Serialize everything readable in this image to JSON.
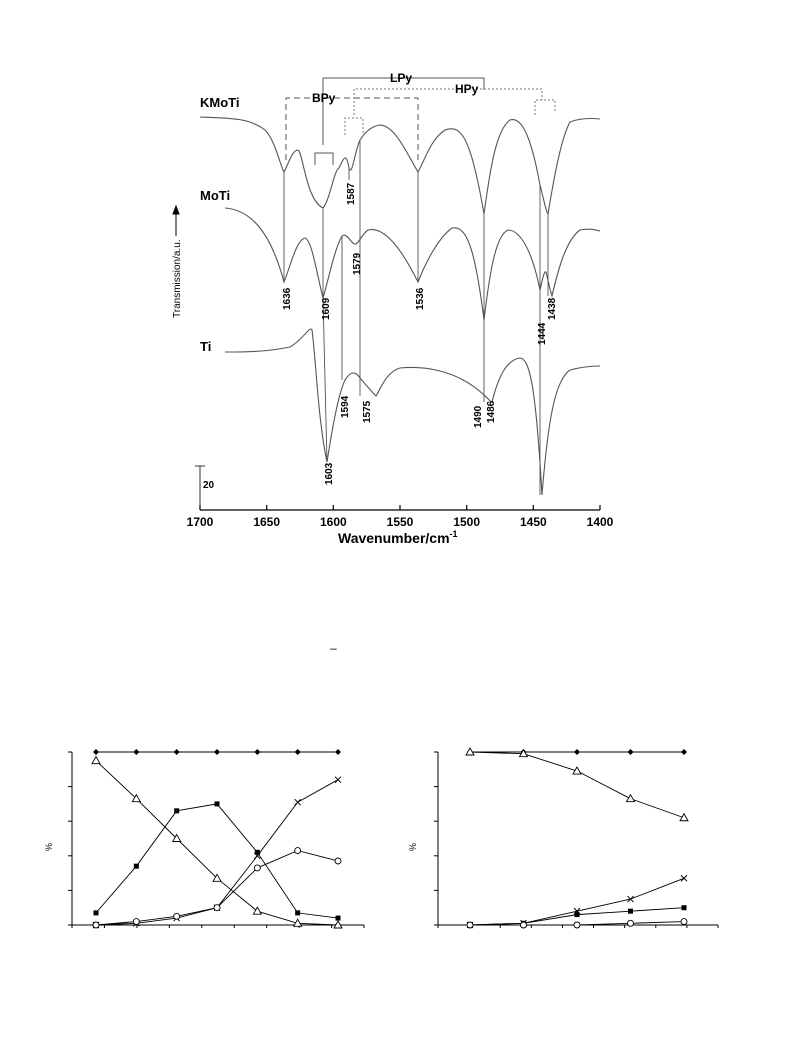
{
  "chart_data": [
    {
      "type": "line",
      "xlabel": "Wavenumber/cm",
      "xlabel_sup": "-1",
      "ylabel": "Transmission/a.u.",
      "xlim": [
        1700,
        1400
      ],
      "x_ticks": [
        "1700",
        "1650",
        "1600",
        "1550",
        "1500",
        "1450",
        "1400"
      ],
      "scale_bar_label": "20",
      "series": [
        {
          "name": "KMoTi",
          "bands": [
            1636,
            1609,
            1587,
            1536,
            1486,
            1438
          ]
        },
        {
          "name": "MoTi",
          "bands": [
            1636,
            1609,
            1579,
            1536,
            1486,
            1444,
            1438
          ]
        },
        {
          "name": "Ti",
          "bands": [
            1603,
            1594,
            1575,
            1490,
            1486,
            1444
          ]
        }
      ],
      "band_labels": [
        "1636",
        "1609",
        "1587",
        "1579",
        "1536",
        "1444",
        "1438",
        "1603",
        "1594",
        "1575",
        "1490",
        "1486"
      ],
      "bracket_labels": {
        "lpy": "LPy",
        "bpy": "BPy",
        "hpy": "HPy"
      }
    },
    {
      "type": "line",
      "ylabel": "%",
      "x": [
        1,
        2,
        3,
        4,
        5,
        6,
        7
      ],
      "ylim": [
        0,
        100
      ],
      "series": [
        {
          "marker": "diamond",
          "values": [
            100,
            100,
            100,
            100,
            100,
            100,
            100
          ]
        },
        {
          "marker": "triangle",
          "values": [
            95,
            73,
            50,
            27,
            8,
            1,
            0
          ]
        },
        {
          "marker": "square",
          "values": [
            7,
            34,
            66,
            70,
            42,
            7,
            4
          ]
        },
        {
          "marker": "cross",
          "values": [
            0,
            1,
            4,
            10,
            40,
            71,
            84
          ]
        },
        {
          "marker": "circle",
          "values": [
            0,
            2,
            5,
            10,
            33,
            43,
            37
          ]
        }
      ]
    },
    {
      "type": "line",
      "ylabel": "%",
      "x": [
        0,
        1,
        2,
        3,
        4
      ],
      "ylim": [
        0,
        100
      ],
      "series": [
        {
          "marker": "diamond",
          "values": [
            100,
            100,
            100,
            100,
            100
          ]
        },
        {
          "marker": "triangle",
          "values": [
            100,
            99,
            89,
            73,
            62
          ]
        },
        {
          "marker": "cross",
          "values": [
            0,
            1,
            8,
            15,
            27
          ]
        },
        {
          "marker": "square",
          "values": [
            0,
            1,
            6,
            8,
            10
          ]
        },
        {
          "marker": "circle",
          "values": [
            0,
            0,
            0,
            1,
            2
          ]
        }
      ]
    }
  ],
  "stray_mark": "–"
}
